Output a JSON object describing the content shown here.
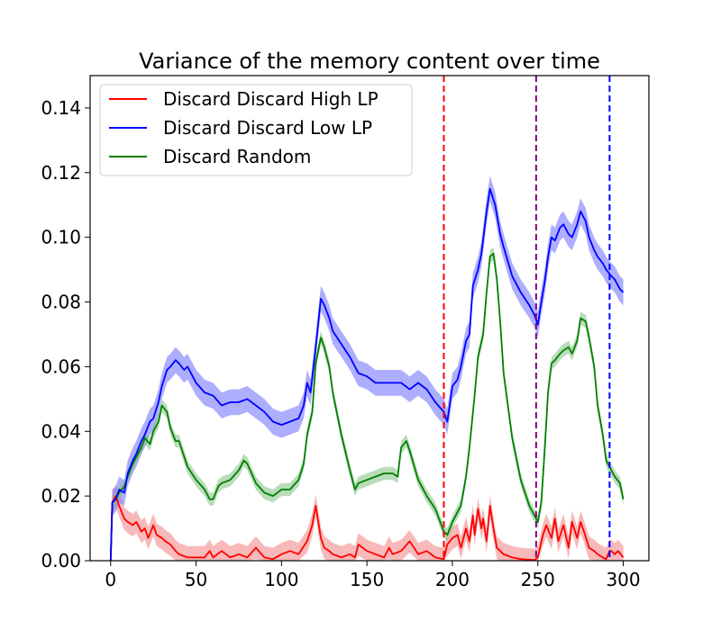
{
  "chart_data": {
    "type": "line",
    "title": "Variance of the memory content over time",
    "xlabel": "",
    "ylabel": "",
    "xlim": [
      -12,
      315
    ],
    "ylim": [
      0,
      0.15
    ],
    "x_ticks": [
      0,
      50,
      100,
      150,
      200,
      250,
      300
    ],
    "x_tick_labels": [
      "0",
      "50",
      "100",
      "150",
      "200",
      "250",
      "300"
    ],
    "y_ticks": [
      0,
      0.02,
      0.04,
      0.06,
      0.08,
      0.1,
      0.12,
      0.14
    ],
    "y_tick_labels": [
      "0.00",
      "0.02",
      "0.04",
      "0.06",
      "0.08",
      "0.10",
      "0.12",
      "0.14"
    ],
    "grid": false,
    "legend_position": "top-left",
    "series": [
      {
        "name": "Discard Discard High LP",
        "color": "#ff0000",
        "band_color": "#f08080",
        "x": [
          0,
          1,
          3,
          5,
          8,
          10,
          13,
          15,
          18,
          20,
          22,
          25,
          27,
          30,
          32,
          35,
          38,
          40,
          45,
          50,
          55,
          58,
          60,
          65,
          70,
          75,
          80,
          85,
          90,
          95,
          100,
          105,
          110,
          115,
          118,
          120,
          123,
          125,
          128,
          130,
          135,
          140,
          143,
          145,
          150,
          155,
          160,
          163,
          165,
          170,
          175,
          180,
          185,
          190,
          195,
          197,
          200,
          203,
          205,
          208,
          210,
          212,
          213,
          215,
          217,
          218,
          220,
          222,
          224,
          226,
          228,
          230,
          235,
          240,
          245,
          248,
          250,
          253,
          255,
          258,
          260,
          262,
          265,
          268,
          270,
          273,
          275,
          277,
          280,
          283,
          285,
          288,
          290,
          292,
          293,
          295,
          297,
          300
        ],
        "y": [
          0,
          0.018,
          0.02,
          0.017,
          0.013,
          0.012,
          0.011,
          0.012,
          0.009,
          0.01,
          0.007,
          0.011,
          0.008,
          0.007,
          0.006,
          0.005,
          0.003,
          0.002,
          0.001,
          0.001,
          0.001,
          0.003,
          0.001,
          0.003,
          0.001,
          0.002,
          0.001,
          0.004,
          0.001,
          0.0005,
          0.002,
          0.003,
          0.002,
          0.006,
          0.011,
          0.017,
          0.007,
          0.004,
          0.003,
          0.002,
          0.001,
          0.002,
          0.001,
          0.005,
          0.003,
          0.002,
          0.001,
          0.004,
          0.002,
          0.003,
          0.006,
          0.002,
          0.003,
          0.001,
          0.0005,
          0.005,
          0.007,
          0.008,
          0.004,
          0.01,
          0.006,
          0.014,
          0.008,
          0.016,
          0.01,
          0.013,
          0.006,
          0.017,
          0.01,
          0.004,
          0.003,
          0.002,
          0.001,
          0.0005,
          0.0003,
          0.0002,
          0.001,
          0.008,
          0.011,
          0.007,
          0.013,
          0.006,
          0.011,
          0.004,
          0.012,
          0.007,
          0.012,
          0.009,
          0.004,
          0.003,
          0.002,
          0.001,
          0.0005,
          0.003,
          0.003,
          0.002,
          0.003,
          0.001
        ],
        "band": 0.0035
      },
      {
        "name": "Discard Discard Low LP",
        "color": "#0000ff",
        "band_color": "#6b6bff",
        "x": [
          0,
          1,
          3,
          5,
          8,
          10,
          13,
          15,
          18,
          20,
          23,
          25,
          28,
          30,
          33,
          35,
          38,
          40,
          43,
          45,
          50,
          55,
          60,
          65,
          70,
          75,
          80,
          85,
          90,
          95,
          100,
          105,
          110,
          113,
          115,
          117,
          120,
          123,
          125,
          128,
          130,
          135,
          140,
          145,
          150,
          155,
          160,
          165,
          170,
          175,
          180,
          185,
          190,
          195,
          197,
          200,
          203,
          205,
          208,
          210,
          212,
          215,
          217,
          220,
          222,
          225,
          228,
          230,
          235,
          240,
          245,
          248,
          250,
          252,
          254,
          256,
          258,
          260,
          263,
          265,
          268,
          270,
          273,
          275,
          278,
          280,
          283,
          285,
          288,
          290,
          293,
          295,
          298,
          300
        ],
        "y": [
          0,
          0.018,
          0.019,
          0.022,
          0.021,
          0.027,
          0.031,
          0.033,
          0.037,
          0.039,
          0.043,
          0.044,
          0.049,
          0.054,
          0.059,
          0.06,
          0.062,
          0.061,
          0.059,
          0.06,
          0.055,
          0.052,
          0.051,
          0.048,
          0.049,
          0.049,
          0.05,
          0.048,
          0.046,
          0.043,
          0.042,
          0.043,
          0.044,
          0.048,
          0.055,
          0.052,
          0.066,
          0.081,
          0.079,
          0.075,
          0.071,
          0.067,
          0.063,
          0.058,
          0.057,
          0.055,
          0.055,
          0.055,
          0.055,
          0.053,
          0.055,
          0.053,
          0.049,
          0.046,
          0.043,
          0.054,
          0.056,
          0.06,
          0.068,
          0.07,
          0.085,
          0.09,
          0.095,
          0.108,
          0.115,
          0.11,
          0.101,
          0.097,
          0.088,
          0.083,
          0.079,
          0.076,
          0.073,
          0.08,
          0.086,
          0.094,
          0.1,
          0.099,
          0.103,
          0.104,
          0.101,
          0.1,
          0.104,
          0.108,
          0.105,
          0.1,
          0.096,
          0.094,
          0.092,
          0.09,
          0.088,
          0.087,
          0.084,
          0.083
        ],
        "band": 0.004
      },
      {
        "name": "Discard Random",
        "color": "#008000",
        "band_color": "#7fbf7f",
        "x": [
          0,
          1,
          3,
          5,
          8,
          10,
          13,
          15,
          18,
          20,
          23,
          25,
          28,
          30,
          33,
          35,
          38,
          40,
          45,
          50,
          55,
          58,
          60,
          63,
          65,
          70,
          75,
          78,
          80,
          85,
          90,
          95,
          100,
          105,
          110,
          113,
          115,
          118,
          120,
          123,
          125,
          128,
          130,
          135,
          140,
          143,
          145,
          150,
          155,
          160,
          165,
          168,
          170,
          173,
          175,
          180,
          185,
          190,
          195,
          197,
          200,
          203,
          205,
          208,
          210,
          213,
          215,
          218,
          220,
          222,
          224,
          226,
          228,
          230,
          235,
          240,
          245,
          248,
          250,
          252,
          254,
          256,
          258,
          260,
          263,
          265,
          268,
          270,
          273,
          275,
          278,
          280,
          283,
          285,
          288,
          290,
          293,
          295,
          298,
          300
        ],
        "y": [
          0,
          0.018,
          0.019,
          0.021,
          0.023,
          0.026,
          0.03,
          0.032,
          0.035,
          0.038,
          0.036,
          0.04,
          0.043,
          0.048,
          0.046,
          0.041,
          0.037,
          0.037,
          0.029,
          0.025,
          0.022,
          0.019,
          0.019,
          0.023,
          0.024,
          0.025,
          0.028,
          0.031,
          0.03,
          0.024,
          0.021,
          0.02,
          0.022,
          0.022,
          0.025,
          0.03,
          0.039,
          0.046,
          0.061,
          0.069,
          0.066,
          0.06,
          0.052,
          0.039,
          0.028,
          0.022,
          0.024,
          0.025,
          0.026,
          0.027,
          0.027,
          0.026,
          0.035,
          0.037,
          0.034,
          0.025,
          0.02,
          0.016,
          0.009,
          0.008,
          0.012,
          0.015,
          0.017,
          0.026,
          0.035,
          0.051,
          0.063,
          0.07,
          0.083,
          0.094,
          0.095,
          0.087,
          0.074,
          0.058,
          0.038,
          0.025,
          0.017,
          0.014,
          0.012,
          0.018,
          0.034,
          0.052,
          0.061,
          0.062,
          0.064,
          0.065,
          0.066,
          0.064,
          0.068,
          0.075,
          0.074,
          0.069,
          0.06,
          0.048,
          0.039,
          0.031,
          0.028,
          0.026,
          0.024,
          0.019
        ],
        "band": 0.002
      }
    ],
    "vertical_lines": [
      {
        "x": 195,
        "color": "#ff0000",
        "style": "dashed"
      },
      {
        "x": 249,
        "color": "#800080",
        "style": "dashed"
      },
      {
        "x": 292,
        "color": "#0000ff",
        "style": "dashed"
      }
    ]
  }
}
